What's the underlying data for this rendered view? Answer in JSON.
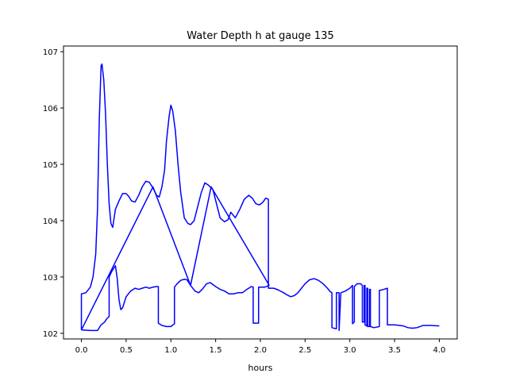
{
  "chart_data": {
    "type": "line",
    "title": "Water Depth h at gauge 135",
    "xlabel": "hours",
    "ylabel": "",
    "xlim": [
      -0.2,
      4.2
    ],
    "ylim": [
      101.9,
      107.1
    ],
    "xticks": [
      0.0,
      0.5,
      1.0,
      1.5,
      2.0,
      2.5,
      3.0,
      3.5,
      4.0
    ],
    "xtick_labels": [
      "0.0",
      "0.5",
      "1.0",
      "1.5",
      "2.0",
      "2.5",
      "3.0",
      "3.5",
      "4.0"
    ],
    "yticks": [
      102,
      103,
      104,
      105,
      106,
      107
    ],
    "ytick_labels": [
      "102",
      "103",
      "104",
      "105",
      "106",
      "107"
    ],
    "grid": false,
    "line_color": "#0000ff",
    "series": [
      {
        "points": [
          [
            0.0,
            102.06
          ],
          [
            0.0,
            102.7
          ],
          [
            0.05,
            102.72
          ],
          [
            0.1,
            102.82
          ],
          [
            0.13,
            103.0
          ],
          [
            0.16,
            103.4
          ],
          [
            0.18,
            104.2
          ],
          [
            0.2,
            105.8
          ],
          [
            0.22,
            106.75
          ],
          [
            0.23,
            106.78
          ],
          [
            0.25,
            106.5
          ],
          [
            0.27,
            105.9
          ],
          [
            0.29,
            105.0
          ],
          [
            0.31,
            104.3
          ],
          [
            0.33,
            103.95
          ],
          [
            0.35,
            103.88
          ],
          [
            0.38,
            104.2
          ],
          [
            0.42,
            104.35
          ],
          [
            0.46,
            104.48
          ],
          [
            0.5,
            104.48
          ],
          [
            0.53,
            104.43
          ],
          [
            0.56,
            104.35
          ],
          [
            0.6,
            104.33
          ],
          [
            0.64,
            104.45
          ],
          [
            0.68,
            104.6
          ],
          [
            0.72,
            104.7
          ],
          [
            0.76,
            104.68
          ],
          [
            0.8,
            104.58
          ],
          [
            0.84,
            104.45
          ],
          [
            0.87,
            104.42
          ],
          [
            0.9,
            104.6
          ],
          [
            0.93,
            104.9
          ],
          [
            0.95,
            105.4
          ],
          [
            0.98,
            105.85
          ],
          [
            1.0,
            106.05
          ],
          [
            1.02,
            105.95
          ],
          [
            1.05,
            105.6
          ],
          [
            1.08,
            105.0
          ],
          [
            1.11,
            104.5
          ],
          [
            1.15,
            104.05
          ],
          [
            1.19,
            103.95
          ],
          [
            1.22,
            103.93
          ],
          [
            1.26,
            104.0
          ],
          [
            1.3,
            104.25
          ],
          [
            1.34,
            104.5
          ],
          [
            1.38,
            104.67
          ],
          [
            1.42,
            104.63
          ],
          [
            1.47,
            104.55
          ],
          [
            1.51,
            104.3
          ],
          [
            1.55,
            104.05
          ],
          [
            1.6,
            103.98
          ],
          [
            1.64,
            104.02
          ],
          [
            1.67,
            104.15
          ],
          [
            1.72,
            104.05
          ],
          [
            1.77,
            104.2
          ],
          [
            1.82,
            104.38
          ],
          [
            1.87,
            104.45
          ],
          [
            1.91,
            104.4
          ],
          [
            1.95,
            104.3
          ],
          [
            1.99,
            104.28
          ],
          [
            2.03,
            104.33
          ],
          [
            2.06,
            104.4
          ],
          [
            2.09,
            104.38
          ],
          [
            2.09,
            102.8
          ],
          [
            2.15,
            102.8
          ],
          [
            2.2,
            102.77
          ],
          [
            2.26,
            102.72
          ],
          [
            2.3,
            102.68
          ],
          [
            2.34,
            102.65
          ],
          [
            2.38,
            102.67
          ],
          [
            2.42,
            102.72
          ],
          [
            2.46,
            102.8
          ],
          [
            2.5,
            102.88
          ],
          [
            2.55,
            102.95
          ],
          [
            2.6,
            102.97
          ],
          [
            2.65,
            102.94
          ],
          [
            2.7,
            102.88
          ],
          [
            2.75,
            102.8
          ],
          [
            2.78,
            102.74
          ],
          [
            2.8,
            102.72
          ],
          [
            2.8,
            102.1
          ],
          [
            2.85,
            102.08
          ],
          [
            2.85,
            102.72
          ],
          [
            2.88,
            102.72
          ],
          [
            2.88,
            102.05
          ],
          [
            2.9,
            102.72
          ],
          [
            2.95,
            102.75
          ],
          [
            3.0,
            102.8
          ],
          [
            3.03,
            102.85
          ],
          [
            3.03,
            102.17
          ],
          [
            3.05,
            102.2
          ],
          [
            3.05,
            102.83
          ],
          [
            3.08,
            102.88
          ],
          [
            3.12,
            102.88
          ],
          [
            3.14,
            102.85
          ],
          [
            3.14,
            102.2
          ],
          [
            3.16,
            102.2
          ],
          [
            3.16,
            102.85
          ],
          [
            3.17,
            102.85
          ],
          [
            3.17,
            102.15
          ],
          [
            3.19,
            102.13
          ],
          [
            3.19,
            102.8
          ],
          [
            3.2,
            102.8
          ],
          [
            3.2,
            102.12
          ],
          [
            3.22,
            102.12
          ],
          [
            3.22,
            102.78
          ],
          [
            3.23,
            102.78
          ],
          [
            3.23,
            102.12
          ],
          [
            3.27,
            102.1
          ],
          [
            3.33,
            102.12
          ],
          [
            3.33,
            102.76
          ],
          [
            3.38,
            102.78
          ],
          [
            3.42,
            102.8
          ],
          [
            3.42,
            102.15
          ],
          [
            3.5,
            102.15
          ],
          [
            3.6,
            102.13
          ],
          [
            3.65,
            102.1
          ],
          [
            3.7,
            102.09
          ],
          [
            3.75,
            102.1
          ],
          [
            3.82,
            102.14
          ],
          [
            3.9,
            102.14
          ],
          [
            4.0,
            102.13
          ]
        ]
      },
      {
        "points": [
          [
            0.0,
            102.06
          ],
          [
            0.8,
            104.6
          ],
          [
            1.22,
            102.85
          ],
          [
            1.45,
            104.6
          ],
          [
            2.1,
            102.85
          ]
        ]
      },
      {
        "points": [
          [
            0.0,
            102.06
          ],
          [
            0.1,
            102.05
          ],
          [
            0.18,
            102.05
          ],
          [
            0.22,
            102.15
          ],
          [
            0.26,
            102.2
          ],
          [
            0.28,
            102.25
          ],
          [
            0.31,
            102.3
          ],
          [
            0.31,
            103.0
          ],
          [
            0.34,
            103.1
          ],
          [
            0.38,
            103.2
          ],
          [
            0.4,
            102.98
          ],
          [
            0.42,
            102.6
          ],
          [
            0.44,
            102.42
          ],
          [
            0.46,
            102.45
          ],
          [
            0.5,
            102.65
          ],
          [
            0.55,
            102.75
          ],
          [
            0.6,
            102.8
          ],
          [
            0.64,
            102.78
          ],
          [
            0.68,
            102.8
          ],
          [
            0.72,
            102.82
          ],
          [
            0.76,
            102.8
          ],
          [
            0.8,
            102.82
          ],
          [
            0.84,
            102.83
          ],
          [
            0.86,
            102.83
          ],
          [
            0.86,
            102.18
          ],
          [
            0.9,
            102.14
          ],
          [
            0.95,
            102.12
          ],
          [
            1.0,
            102.12
          ],
          [
            1.04,
            102.17
          ],
          [
            1.04,
            102.82
          ],
          [
            1.07,
            102.88
          ],
          [
            1.11,
            102.94
          ],
          [
            1.15,
            102.96
          ],
          [
            1.18,
            102.95
          ],
          [
            1.22,
            102.85
          ],
          [
            1.27,
            102.75
          ],
          [
            1.31,
            102.72
          ],
          [
            1.35,
            102.78
          ],
          [
            1.4,
            102.88
          ],
          [
            1.44,
            102.9
          ],
          [
            1.5,
            102.83
          ],
          [
            1.55,
            102.78
          ],
          [
            1.6,
            102.75
          ],
          [
            1.65,
            102.7
          ],
          [
            1.7,
            102.7
          ],
          [
            1.75,
            102.72
          ],
          [
            1.8,
            102.72
          ],
          [
            1.85,
            102.78
          ],
          [
            1.9,
            102.83
          ],
          [
            1.92,
            102.82
          ],
          [
            1.92,
            102.18
          ],
          [
            1.98,
            102.18
          ],
          [
            1.98,
            102.82
          ],
          [
            2.05,
            102.82
          ],
          [
            2.1,
            102.85
          ]
        ]
      }
    ]
  }
}
